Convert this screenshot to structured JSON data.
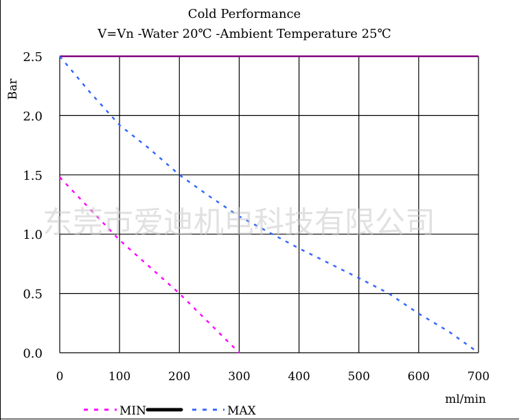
{
  "chart_data": {
    "type": "line",
    "title": "Cold Performance",
    "subtitle": "V=Vn -Water 20℃ -Ambient Temperature 25℃",
    "xlabel": "ml/min",
    "ylabel": "Bar",
    "xlim": [
      0,
      700
    ],
    "ylim": [
      0,
      2.5
    ],
    "xticks": [
      "0",
      "100",
      "200",
      "300",
      "400",
      "500",
      "600",
      "700"
    ],
    "yticks": [
      "0.0",
      "0.5",
      "1.0",
      "1.5",
      "2.0",
      "2.5"
    ],
    "grid": true,
    "legend_position": "bottom-left",
    "series": [
      {
        "name": "MIN",
        "color": "#ff00ff",
        "style": "dashed",
        "x": [
          0,
          100,
          200,
          300
        ],
        "y": [
          1.48,
          0.95,
          0.5,
          0.0
        ]
      },
      {
        "name": "",
        "color": "#000000",
        "style": "solid",
        "x": [],
        "y": []
      },
      {
        "name": "MAX",
        "color": "#3366ff",
        "style": "dashed",
        "x": [
          0,
          50,
          100,
          150,
          200,
          250,
          300,
          400,
          500,
          550,
          600,
          650,
          700
        ],
        "y": [
          2.5,
          2.2,
          1.92,
          1.72,
          1.5,
          1.32,
          1.15,
          0.88,
          0.63,
          0.5,
          0.33,
          0.18,
          0.0
        ]
      }
    ],
    "reference_line": {
      "y": 2.5,
      "color": "#800080"
    }
  },
  "watermark": "东莞市爱迪机电科技有限公司"
}
